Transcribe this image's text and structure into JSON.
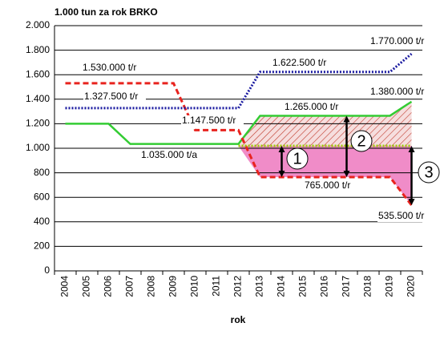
{
  "chart_data": {
    "type": "line",
    "title": "1.000 tun za rok BRKO",
    "x_label": "rok",
    "categories": [
      "2004",
      "2005",
      "2006",
      "2007",
      "2008",
      "2009",
      "2010",
      "2011",
      "2012",
      "2013",
      "2014",
      "2015",
      "2016",
      "2017",
      "2018",
      "2019",
      "2020"
    ],
    "series": [
      {
        "color": "#33cc33",
        "style": "solid",
        "values": [
          1200,
          1200,
          1200,
          1035,
          1035,
          1035,
          1035,
          1035,
          1035,
          1265,
          1265,
          1265,
          1265,
          1265,
          1265,
          1265,
          1380
        ]
      },
      {
        "color": "#e8231e",
        "style": "dashed",
        "values": [
          1530,
          1530,
          1530,
          1530,
          1530,
          1530,
          1147.5,
          1147.5,
          1147.5,
          765,
          765,
          765,
          765,
          765,
          765,
          765,
          535.5
        ]
      },
      {
        "color": "#1a1aa0",
        "style": "dotted",
        "values": [
          1327.5,
          1327.5,
          1327.5,
          1327.5,
          1327.5,
          1327.5,
          1327.5,
          1327.5,
          1327.5,
          1622.5,
          1622.5,
          1622.5,
          1622.5,
          1622.5,
          1622.5,
          1622.5,
          1770
        ]
      },
      {
        "color": "#99cc00",
        "style": "dotted",
        "values": [
          null,
          null,
          null,
          null,
          null,
          null,
          null,
          null,
          1020,
          1020,
          1020,
          1020,
          1020,
          1020,
          1020,
          1020,
          1020
        ]
      }
    ],
    "ylim": [
      0,
      2000
    ],
    "yticks": [
      0,
      200,
      400,
      600,
      800,
      {
        "value": 1000,
        "label": "1.000"
      },
      {
        "value": 1200,
        "label": "1.200"
      },
      {
        "value": 1400,
        "label": "1.400"
      },
      {
        "value": 1600,
        "label": "1.600"
      },
      {
        "value": 1800,
        "label": "1.800"
      },
      {
        "value": 2000,
        "label": "2.000"
      }
    ],
    "grid": true,
    "annotations": [
      "1.530.000 t/r",
      "1.327.500 t/r",
      "1.622.500 t/r",
      "1.770.000 t/r",
      "1.380.000 t/r",
      "1.265.000 t/r",
      "1.147.500 t/r",
      "1.035.000 t/a",
      "765.000 t/r",
      "535.500 t/r",
      "1",
      "2",
      "3"
    ]
  }
}
